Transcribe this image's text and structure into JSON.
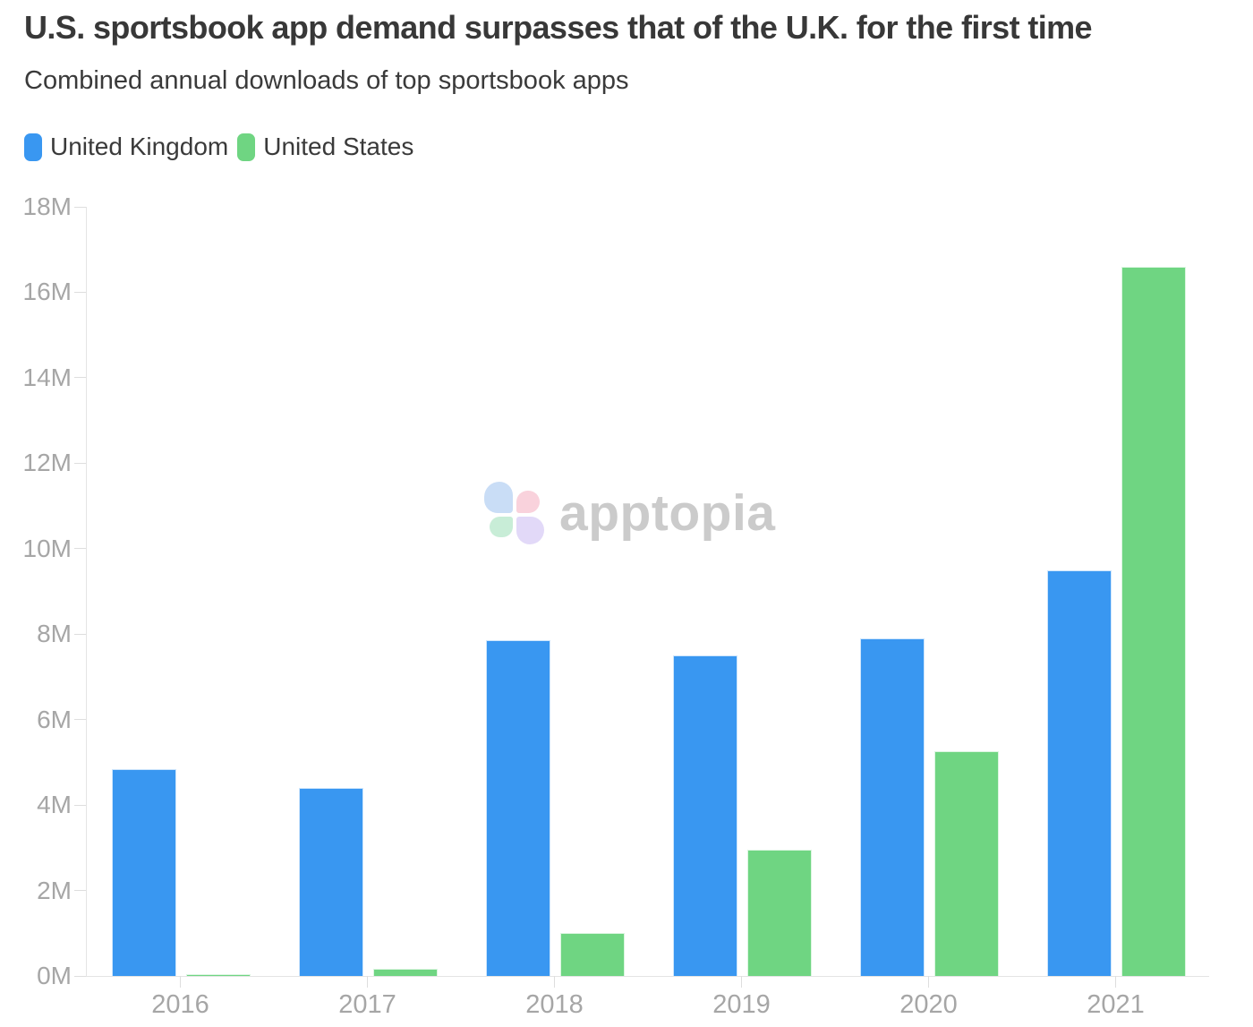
{
  "title": "U.S. sportsbook app demand surpasses that of the U.K. for the first time",
  "subtitle": "Combined annual downloads of top sportsbook apps",
  "legend": [
    {
      "label": "United Kingdom",
      "color": "#3997F1"
    },
    {
      "label": "United States",
      "color": "#6FD582"
    }
  ],
  "watermark": {
    "text": "apptopia",
    "text_color": "#CBCBCB",
    "petals": [
      {
        "name": "blue",
        "color": "#C9DDF6"
      },
      {
        "name": "pink",
        "color": "#F9D2DC"
      },
      {
        "name": "green",
        "color": "#C8EDD7"
      },
      {
        "name": "purple",
        "color": "#E2D9F8"
      }
    ]
  },
  "chart_data": {
    "type": "bar",
    "title": "U.S. sportsbook app demand surpasses that of the U.K. for the first time",
    "subtitle": "Combined annual downloads of top sportsbook apps",
    "categories": [
      "2016",
      "2017",
      "2018",
      "2019",
      "2020",
      "2021"
    ],
    "series": [
      {
        "name": "United Kingdom",
        "color": "#3997F1",
        "values": [
          4.85,
          4.4,
          7.85,
          7.5,
          7.9,
          9.5
        ]
      },
      {
        "name": "United States",
        "color": "#6FD582",
        "values": [
          0.05,
          0.16,
          1.0,
          2.95,
          5.25,
          16.6
        ]
      }
    ],
    "unit": "M",
    "xlabel": "",
    "ylabel": "",
    "ylim": [
      0,
      18
    ],
    "y_ticks": [
      "0M",
      "2M",
      "4M",
      "6M",
      "8M",
      "10M",
      "12M",
      "14M",
      "16M",
      "18M"
    ],
    "grid": false,
    "legend_position": "top-left"
  }
}
